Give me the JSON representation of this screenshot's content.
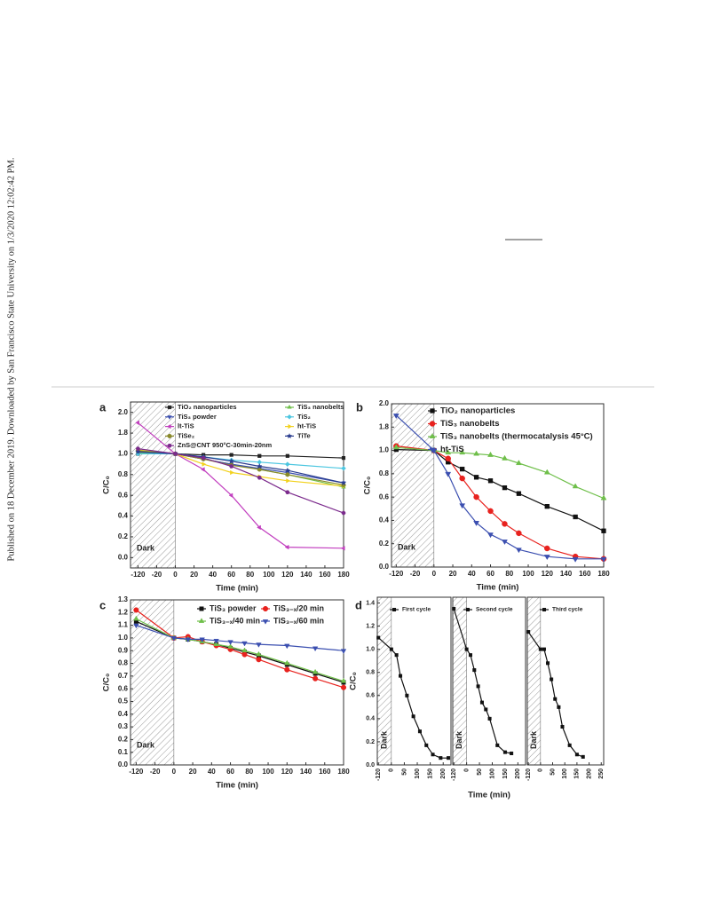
{
  "side_note": "Published on 18 December 2019. Downloaded by San Francisco State University on 1/3/2020 12:02:42 PM.",
  "chart_data": [
    {
      "type": "line",
      "label": "a",
      "xlabel": "Time (min)",
      "ylabel": "C/C₀",
      "dark_label": "Dark",
      "x": [
        -120,
        0,
        30,
        60,
        90,
        120,
        180
      ],
      "xlim": [
        -160,
        180
      ],
      "xticks": [
        -120,
        -20,
        0,
        20,
        40,
        60,
        80,
        100,
        120,
        140,
        160,
        180
      ],
      "ylim": [
        -0.1,
        2.1
      ],
      "yticks": [
        {
          "value": 0,
          "label": "0.0"
        },
        0.2,
        0.4,
        0.6,
        0.8,
        {
          "value": 1,
          "label": "1.0"
        },
        1.8,
        {
          "value": 2,
          "label": "2.0"
        }
      ],
      "series": [
        {
          "name": "TiO₂ nanoparticles",
          "color": "#222222",
          "marker": "square",
          "values": [
            1.0,
            1.0,
            0.99,
            0.99,
            0.98,
            0.98,
            0.96
          ]
        },
        {
          "name": "TiS₃ nanobelts",
          "color": "#6fbf4a",
          "marker": "triangle-up",
          "values": [
            1.05,
            1.0,
            0.95,
            0.9,
            0.85,
            0.8,
            0.68
          ]
        },
        {
          "name": "TiS₃ powder",
          "color": "#3b4fb0",
          "marker": "triangle-down",
          "values": [
            1.1,
            1.0,
            0.95,
            0.9,
            0.86,
            0.82,
            0.72
          ]
        },
        {
          "name": "TiS₂",
          "color": "#4cc6e0",
          "marker": "diamond",
          "values": [
            1.0,
            1.0,
            0.97,
            0.94,
            0.92,
            0.9,
            0.86
          ]
        },
        {
          "name": "lt-TiS",
          "color": "#c23fbf",
          "marker": "triangle-left",
          "values": [
            1.9,
            1.0,
            0.85,
            0.6,
            0.29,
            0.1,
            0.09
          ]
        },
        {
          "name": "ht-TiS",
          "color": "#f2d21f",
          "marker": "triangle-right",
          "values": [
            1.15,
            1.0,
            0.9,
            0.82,
            0.78,
            0.74,
            0.69
          ]
        },
        {
          "name": "TiSe₂",
          "color": "#8a8a2a",
          "marker": "circle",
          "values": [
            1.12,
            1.0,
            0.95,
            0.89,
            0.85,
            0.8,
            0.7
          ]
        },
        {
          "name": "TiTe",
          "color": "#2a3d8f",
          "marker": "star",
          "values": [
            1.08,
            1.0,
            0.97,
            0.93,
            0.88,
            0.84,
            0.72
          ]
        },
        {
          "name": "ZnS@CNT 950°C-30min-20nm",
          "color": "#7b2a8c",
          "marker": "hexagon",
          "values": [
            1.2,
            1.0,
            0.96,
            0.88,
            0.77,
            0.63,
            0.43
          ]
        }
      ]
    },
    {
      "type": "line",
      "label": "b",
      "xlabel": "Time (min)",
      "ylabel": "C/C₀",
      "dark_label": "Dark",
      "x": [
        -120,
        0,
        15,
        30,
        45,
        60,
        75,
        90,
        120,
        150,
        180
      ],
      "xlim": [
        -145,
        180
      ],
      "xticks": [
        -120,
        -20,
        0,
        20,
        40,
        60,
        80,
        100,
        120,
        140,
        160,
        180
      ],
      "ylim": [
        0,
        2.0
      ],
      "yticks": [
        {
          "value": 0,
          "label": "0.0"
        },
        0.2,
        0.4,
        0.6,
        0.8,
        {
          "value": 1,
          "label": "1.0"
        },
        1.8,
        {
          "value": 2,
          "label": "2.0"
        }
      ],
      "series": [
        {
          "name": "TiO₂ nanoparticles",
          "color": "#111111",
          "marker": "square",
          "values": [
            1.03,
            1.0,
            0.9,
            0.84,
            0.77,
            0.74,
            0.68,
            0.63,
            0.52,
            0.43,
            0.31
          ]
        },
        {
          "name": "TiS₃ nanobelts",
          "color": "#e8221e",
          "marker": "circle",
          "values": [
            1.15,
            1.0,
            0.93,
            0.76,
            0.6,
            0.48,
            0.37,
            0.29,
            0.16,
            0.09,
            0.07
          ]
        },
        {
          "name": "TiS₃ nanobelts (thermocatalysis 45°C)",
          "color": "#6fbf4a",
          "marker": "triangle-up",
          "values": [
            1.1,
            1.0,
            0.98,
            0.98,
            0.97,
            0.96,
            0.93,
            0.89,
            0.81,
            0.69,
            0.59
          ]
        },
        {
          "name": "ht-TiS",
          "color": "#3b4fb0",
          "marker": "triangle-down",
          "values": [
            1.9,
            1.0,
            0.8,
            0.53,
            0.38,
            0.28,
            0.22,
            0.15,
            0.09,
            0.07,
            0.07
          ]
        }
      ]
    },
    {
      "type": "line",
      "label": "c",
      "xlabel": "Time (min)",
      "ylabel": "C/C₀",
      "dark_label": "Dark",
      "x": [
        -120,
        0,
        15,
        30,
        45,
        60,
        75,
        90,
        120,
        150,
        180
      ],
      "xlim": [
        -150,
        180
      ],
      "xticks": [
        -120,
        -20,
        0,
        20,
        40,
        60,
        80,
        100,
        120,
        140,
        160,
        180
      ],
      "ylim": [
        0,
        1.3
      ],
      "yticks": [
        {
          "value": 0,
          "label": "0.0"
        },
        0.1,
        0.2,
        0.3,
        0.4,
        0.5,
        0.6,
        0.7,
        0.8,
        0.9,
        {
          "value": 1,
          "label": "1.0"
        },
        1.1,
        1.2,
        1.3
      ],
      "series": [
        {
          "name": "TiS₃ powder",
          "color": "#111111",
          "marker": "square",
          "values": [
            1.13,
            1.0,
            0.99,
            0.97,
            0.95,
            0.92,
            0.89,
            0.86,
            0.79,
            0.72,
            0.65
          ]
        },
        {
          "name": "TiS₃₋ₓ/20 min",
          "color": "#e8221e",
          "marker": "circle",
          "values": [
            1.22,
            1.0,
            1.01,
            0.97,
            0.94,
            0.91,
            0.87,
            0.83,
            0.75,
            0.68,
            0.61
          ]
        },
        {
          "name": "TiS₃₋ₓ/40 min",
          "color": "#6fbf4a",
          "marker": "triangle-up",
          "values": [
            1.15,
            1.0,
            0.99,
            0.97,
            0.95,
            0.93,
            0.9,
            0.87,
            0.8,
            0.73,
            0.66
          ]
        },
        {
          "name": "TiS₃₋ₓ/60 min",
          "color": "#3b4fb0",
          "marker": "triangle-down",
          "values": [
            1.1,
            1.0,
            0.99,
            0.99,
            0.98,
            0.97,
            0.96,
            0.95,
            0.94,
            0.92,
            0.9
          ]
        }
      ]
    },
    {
      "type": "line",
      "label": "d",
      "ylabel": "C/C₀",
      "dark_label": "Dark",
      "x": [
        -120,
        0,
        20,
        35,
        60,
        85,
        110,
        135,
        160,
        190,
        220
      ],
      "xlim": [
        -130,
        230
      ],
      "xticks": [
        -120,
        0,
        50,
        100,
        150,
        200
      ],
      "ylim": [
        0,
        1.45
      ],
      "yticks": [
        {
          "value": 0,
          "label": "0.0"
        },
        0.2,
        0.4,
        0.6,
        0.8,
        {
          "value": 1,
          "label": "1.0"
        },
        1.2,
        1.4
      ],
      "series": [
        {
          "name": "First cycle",
          "color": "#111111",
          "marker": "square",
          "values": [
            1.1,
            1.0,
            0.95,
            0.77,
            0.6,
            0.42,
            0.29,
            0.17,
            0.09,
            0.06,
            0.06
          ]
        }
      ]
    },
    {
      "type": "line",
      "xlabel": "Time (min)",
      "dark_label": "Dark",
      "x": [
        -120,
        0,
        15,
        30,
        45,
        60,
        75,
        90,
        120,
        150,
        175
      ],
      "xlim": [
        -130,
        230
      ],
      "xticks": [
        -120,
        0,
        50,
        100,
        150,
        200
      ],
      "ylim": [
        0,
        1.45
      ],
      "series": [
        {
          "name": "Second cycle",
          "color": "#111111",
          "marker": "square",
          "values": [
            1.35,
            1.0,
            0.95,
            0.82,
            0.68,
            0.54,
            0.48,
            0.4,
            0.17,
            0.11,
            0.1
          ]
        }
      ]
    },
    {
      "type": "line",
      "dark_label": "Dark",
      "x": [
        -120,
        0,
        15,
        30,
        45,
        60,
        75,
        90,
        120,
        150,
        175
      ],
      "xlim": [
        -130,
        260
      ],
      "xticks": [
        -120,
        0,
        50,
        100,
        150,
        200,
        250
      ],
      "ylim": [
        0,
        1.45
      ],
      "series": [
        {
          "name": "Third cycle",
          "color": "#111111",
          "marker": "square",
          "values": [
            1.15,
            1.0,
            1.0,
            0.88,
            0.74,
            0.57,
            0.5,
            0.33,
            0.17,
            0.09,
            0.07
          ]
        }
      ]
    }
  ]
}
